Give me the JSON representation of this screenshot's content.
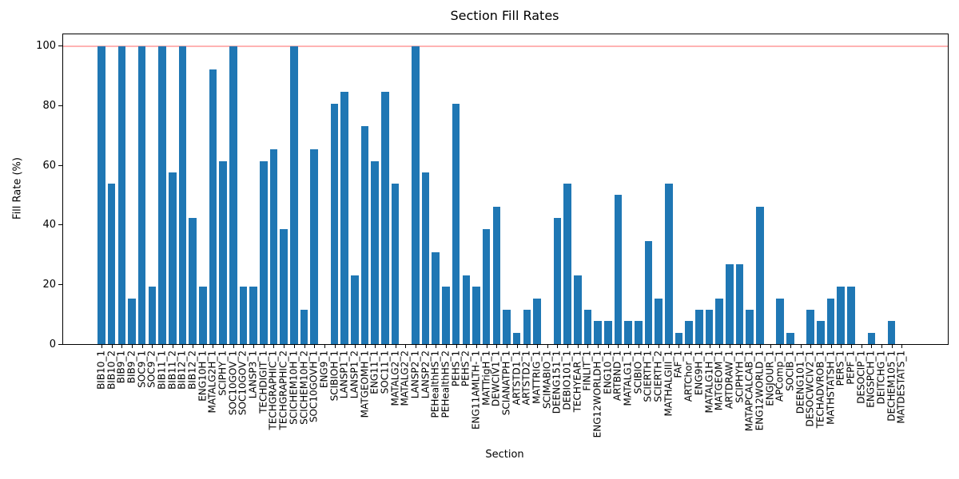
{
  "chart_data": {
    "type": "bar",
    "title": "Section Fill Rates",
    "xlabel": "Section",
    "ylabel": "Fill Rate (%)",
    "bar_color": "#1f77b4",
    "reference_line": {
      "y": 100,
      "color": "#ffb3b3"
    },
    "yticks": [
      0,
      20,
      40,
      60,
      80,
      100
    ],
    "ylim": [
      0,
      104
    ],
    "grid": false,
    "categories": [
      "BIB10_1",
      "BIB10_2",
      "BIB9_1",
      "BIB9_2",
      "SOC9_1",
      "SOC9_2",
      "BIB11_1",
      "BIB11_2",
      "BIB12_1",
      "BIB12_2",
      "ENG10H_1",
      "MATALG2H_1",
      "SCIPHY_1",
      "SOC10GOV_1",
      "SOC10GOV_2",
      "LANSP3_1",
      "TECHDIGIT_1",
      "TECHGRAPHIC_1",
      "TECHGRAPHIC_2",
      "SCICHEM10H_1",
      "SCICHEM10H_2",
      "SOC10GOVH_1",
      "ENG9_1",
      "SCIBIOH_1",
      "LANSP1_1",
      "LANSP1_2",
      "MATGEOMH_1",
      "ENG11_1",
      "SOC11_1",
      "MATALG2_1",
      "MATALG2_2",
      "LANSP2_1",
      "LANSP2_2",
      "PEHealthHS_1",
      "PEHealthHS_2",
      "PEHS_1",
      "PEHS_2",
      "ENG11AMLTH-_1",
      "MATTrigH_1",
      "DEWCIV1_1",
      "SCIANATPH_1",
      "ARTSTD1_1",
      "ARTSTD2_1",
      "MATTRIG_1",
      "SCIMABIO_1",
      "DEENG151_1",
      "DEBIO101_1",
      "TECHYEAR_1",
      "FINLIT_1",
      "ENG12WORLDH_1",
      "ENG10_1",
      "ARTBND_1",
      "MATALG1_1",
      "SCIBIO_1",
      "SCIERTH_1",
      "SCIERTH_2",
      "MATHALGIII_1",
      "FAF_1",
      "ARTChor_1",
      "ENG9H_1",
      "MATALG1H_1",
      "MATGEOM_1",
      "ARTDRAW_1",
      "SCIPHYH_1",
      "MATAPCALCAB_1",
      "ENG12WORLD_1",
      "ENGJOUR_1",
      "APComp_1",
      "SOCIB_1",
      "DEENG101_1",
      "DESOCWCIV2_1",
      "TECHADVROB_1",
      "MATHSTATSH_1",
      "PERS_1",
      "PEPF_1",
      "DESOCIP_1",
      "ENGSPCH_1",
      "DEITCHG_1",
      "DECHEM105_1",
      "MATDESTATS_1"
    ],
    "values": [
      100,
      53.8,
      100,
      15.4,
      100,
      19.2,
      100,
      57.7,
      100,
      42.3,
      19.2,
      92.3,
      61.5,
      100,
      19.2,
      19.2,
      61.5,
      65.4,
      38.5,
      100,
      11.5,
      65.4,
      0,
      80.8,
      84.6,
      23.1,
      73.1,
      61.5,
      84.6,
      53.8,
      0,
      100,
      57.7,
      30.8,
      19.2,
      80.8,
      23.1,
      19.2,
      38.5,
      46.2,
      11.5,
      3.8,
      11.5,
      15.4,
      0,
      42.3,
      53.8,
      23.1,
      11.5,
      7.7,
      7.7,
      50,
      7.7,
      7.7,
      34.6,
      15.4,
      53.8,
      3.8,
      7.7,
      11.5,
      11.5,
      15.4,
      26.9,
      26.9,
      11.5,
      46.2,
      0,
      15.4,
      3.8,
      0,
      11.5,
      7.7,
      15.4,
      19.2,
      19.2,
      0,
      3.8,
      0,
      7.7,
      0
    ]
  }
}
